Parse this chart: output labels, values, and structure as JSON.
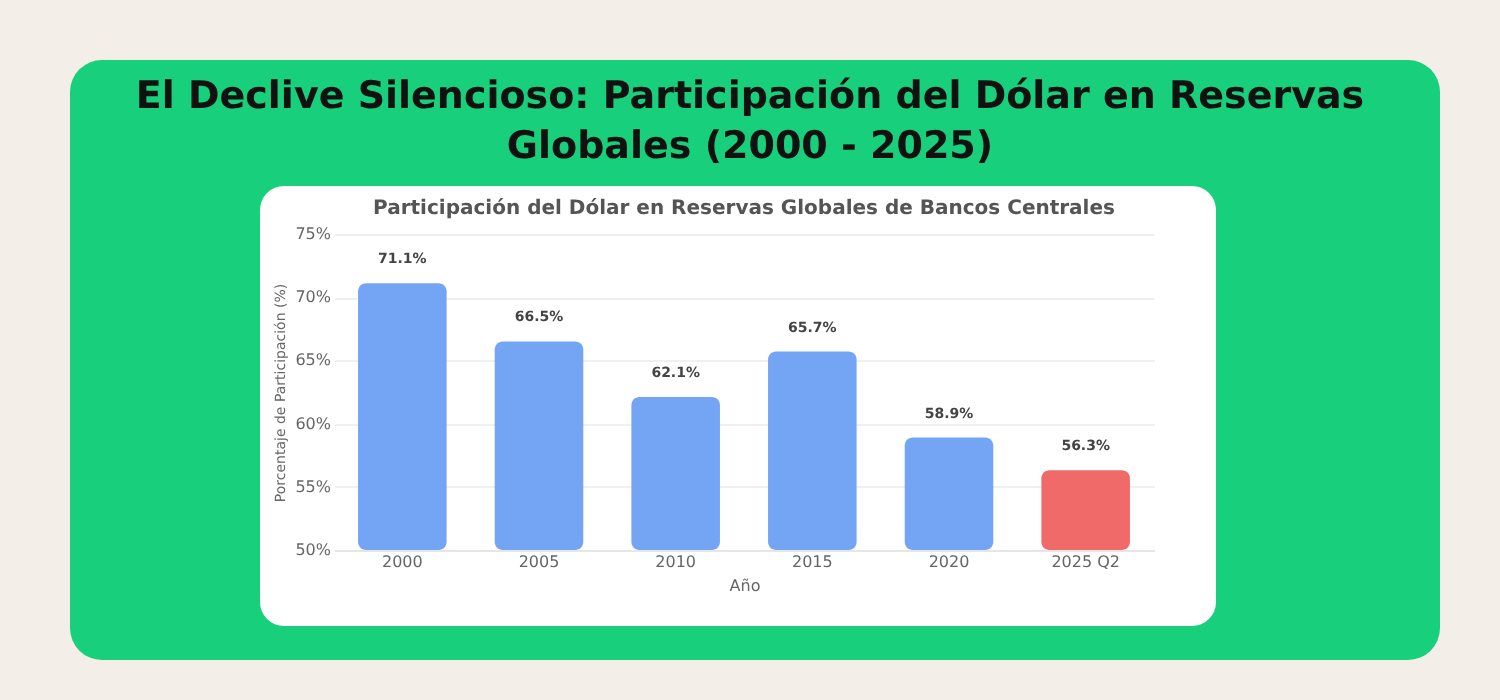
{
  "chart_data": {
    "type": "bar",
    "title": "El Declive Silencioso: Participación del Dólar en Reservas Globales (2000 - 2025)",
    "subtitle": "Participación del Dólar en Reservas Globales de Bancos Centrales",
    "xlabel": "Año",
    "ylabel": "Porcentaje de Participación (%)",
    "categories": [
      "2000",
      "2005",
      "2010",
      "2015",
      "2020",
      "2025 Q2"
    ],
    "values": [
      71.1,
      66.5,
      62.1,
      65.7,
      58.9,
      56.3
    ],
    "colors": [
      "#74a5f5",
      "#74a5f5",
      "#74a5f5",
      "#74a5f5",
      "#74a5f5",
      "#f06a6a"
    ],
    "value_labels": [
      "71.1%",
      "66.5%",
      "62.1%",
      "65.7%",
      "58.9%",
      "56.3%"
    ],
    "ylim": [
      50,
      75
    ],
    "yticks": [
      {
        "value": 50,
        "label": "50%"
      },
      {
        "value": 55,
        "label": "55%"
      },
      {
        "value": 60,
        "label": "60%"
      },
      {
        "value": 65,
        "label": "65%"
      },
      {
        "value": 70,
        "label": "70%"
      },
      {
        "value": 75,
        "label": "75%"
      }
    ],
    "grid": "y"
  }
}
